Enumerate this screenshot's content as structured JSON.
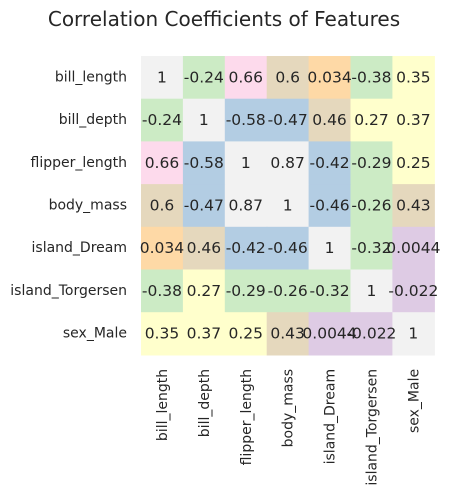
{
  "chart_data": {
    "type": "heatmap",
    "title": "Correlation Coefficients of Features",
    "xlabel": "",
    "ylabel": "",
    "rows": [
      "bill_length",
      "bill_depth",
      "flipper_length",
      "body_mass",
      "island_Dream",
      "island_Torgersen",
      "sex_Male"
    ],
    "columns": [
      "bill_length",
      "bill_depth",
      "flipper_length",
      "body_mass",
      "island_Dream",
      "island_Torgersen",
      "sex_Male"
    ],
    "values": [
      [
        1,
        -0.24,
        0.66,
        0.6,
        0.034,
        -0.38,
        0.35
      ],
      [
        -0.24,
        1,
        -0.58,
        -0.47,
        0.46,
        0.27,
        0.37
      ],
      [
        0.66,
        -0.58,
        1,
        0.87,
        -0.42,
        -0.29,
        0.25
      ],
      [
        0.6,
        -0.47,
        0.87,
        1,
        -0.46,
        -0.26,
        0.43
      ],
      [
        0.034,
        0.46,
        -0.42,
        -0.46,
        1,
        -0.32,
        0.0044
      ],
      [
        -0.38,
        0.27,
        -0.29,
        -0.26,
        -0.32,
        1,
        -0.022
      ],
      [
        0.35,
        0.37,
        0.25,
        0.43,
        0.0044,
        -0.022,
        1
      ]
    ],
    "labels": [
      [
        "1",
        "-0.24",
        "0.66",
        "0.6",
        "0.034",
        "-0.38",
        "0.35"
      ],
      [
        "-0.24",
        "1",
        "-0.58",
        "-0.47",
        "0.46",
        "0.27",
        "0.37"
      ],
      [
        "0.66",
        "-0.58",
        "1",
        "0.87",
        "-0.42",
        "-0.29",
        "0.25"
      ],
      [
        "0.6",
        "-0.47",
        "0.87",
        "1",
        "-0.46",
        "-0.26",
        "0.43"
      ],
      [
        "0.034",
        "0.46",
        "-0.42",
        "-0.46",
        "1",
        "-0.32",
        "0.0044"
      ],
      [
        "-0.38",
        "0.27",
        "-0.29",
        "-0.26",
        "-0.32",
        "1",
        "-0.022"
      ],
      [
        "0.35",
        "0.37",
        "0.25",
        "0.43",
        "0.0044",
        "-0.022",
        "1"
      ]
    ],
    "colormap": "Pastel1 (discrete)",
    "palette": [
      "#b3cde3",
      "#ccebc5",
      "#decbe4",
      "#fed9a6",
      "#ffffcc",
      "#e5d8bd",
      "#fddaec",
      "#f2f2f2"
    ],
    "vmin": -0.58,
    "vmax": 1,
    "grid": false,
    "colorbar": false
  }
}
